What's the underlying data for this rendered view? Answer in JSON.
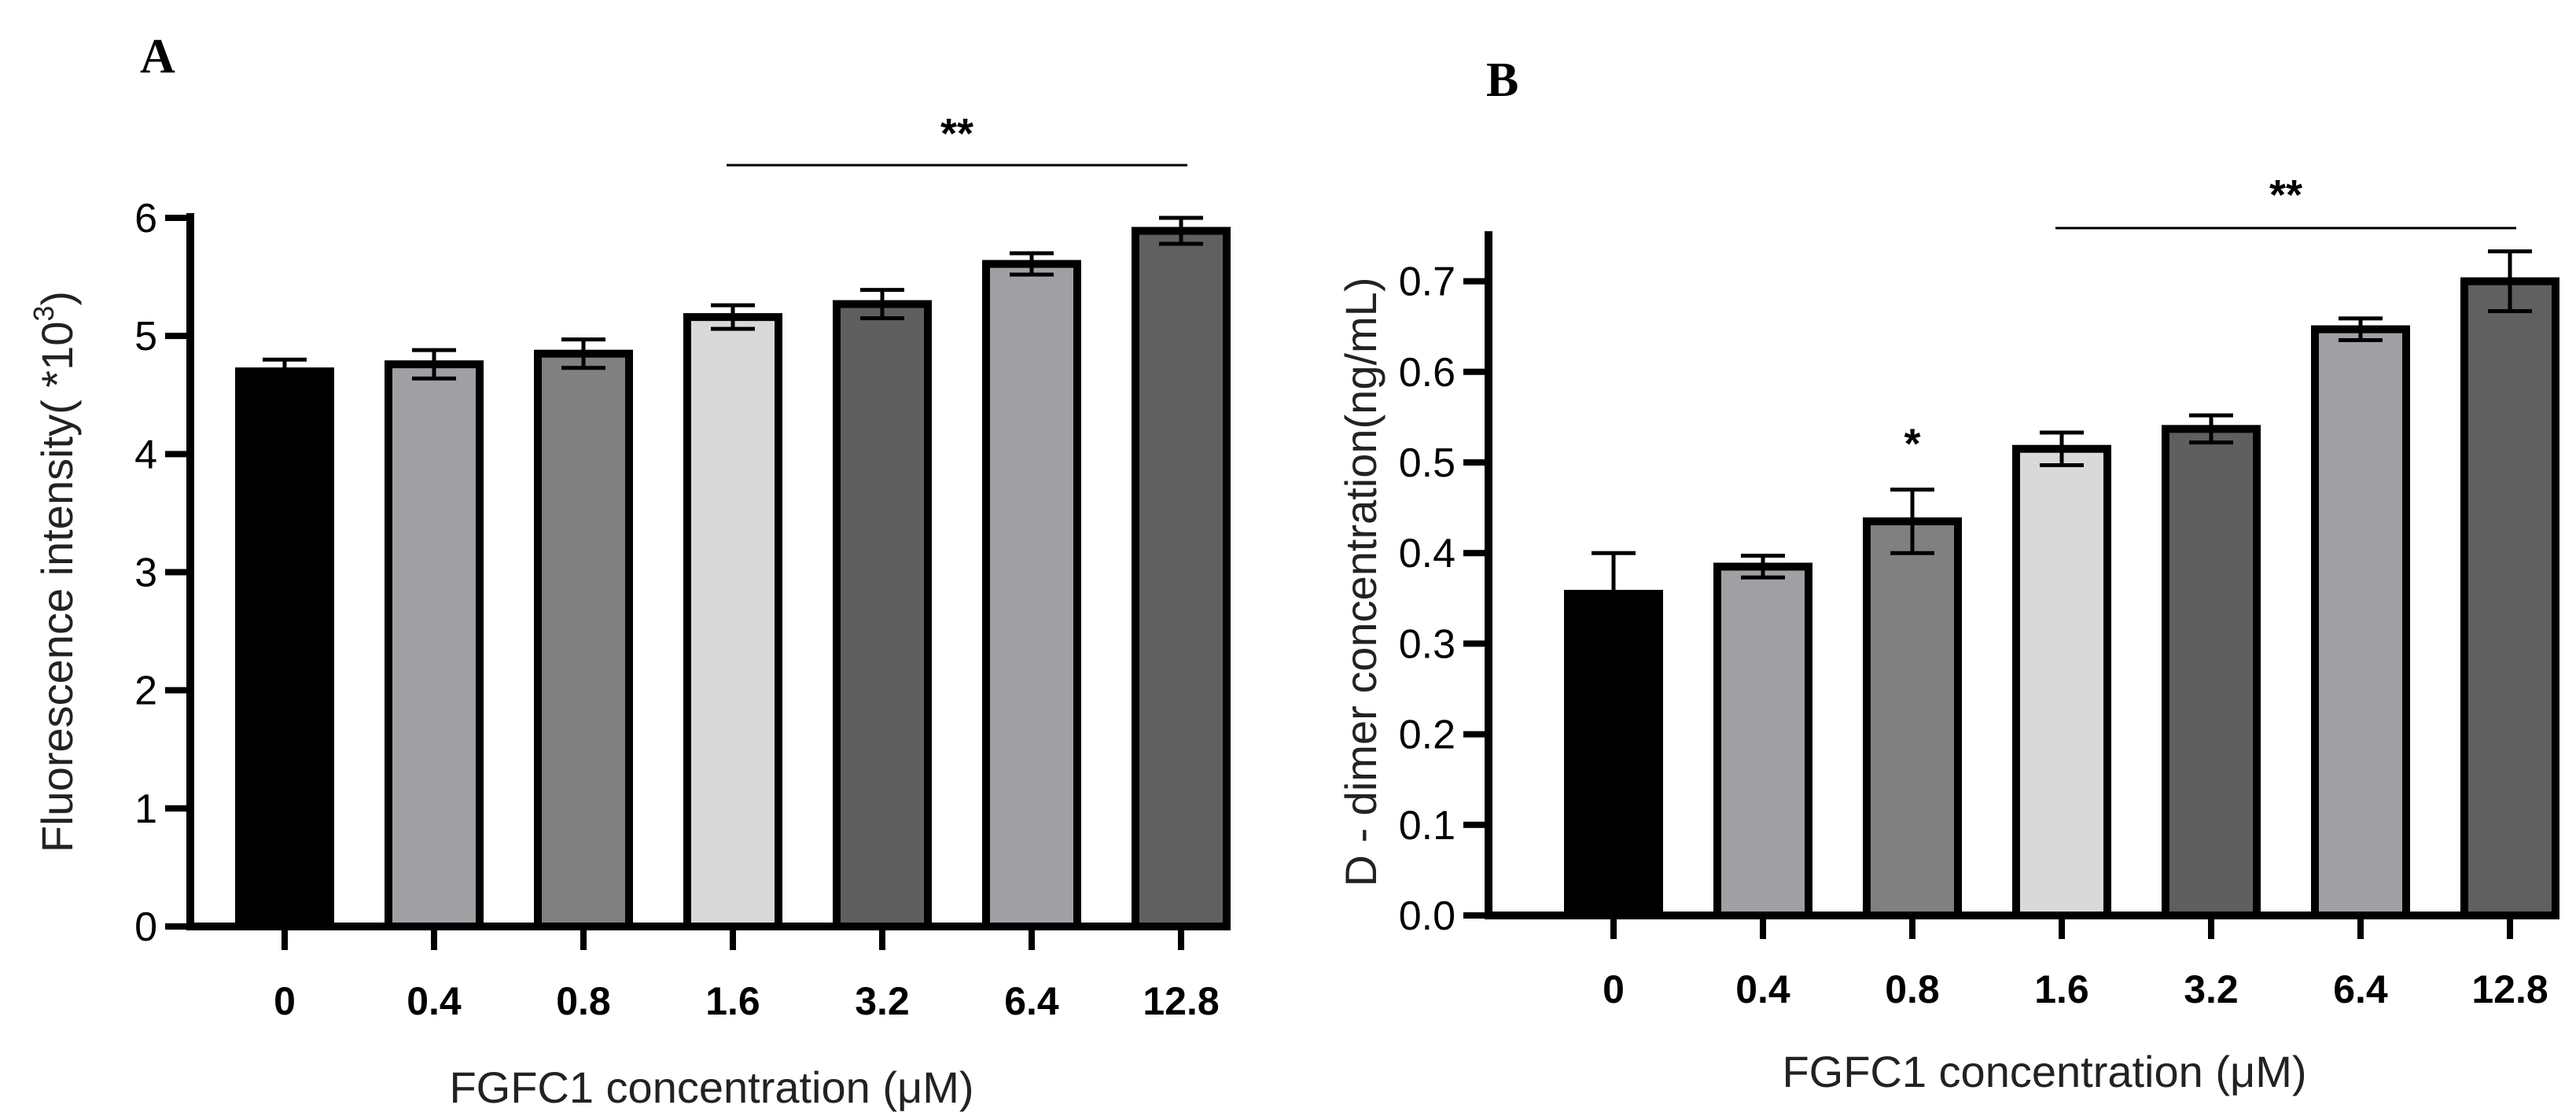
{
  "chart_data": [
    {
      "panel_label": "A",
      "type": "bar",
      "categories": [
        "0",
        "0.4",
        "0.8",
        "1.6",
        "3.2",
        "6.4",
        "12.8"
      ],
      "values": [
        4.7,
        4.76,
        4.85,
        5.16,
        5.27,
        5.61,
        5.89
      ],
      "errors": [
        0.1,
        0.12,
        0.12,
        0.1,
        0.12,
        0.09,
        0.11
      ],
      "bar_colors": [
        "#000000",
        "#a0a0a4",
        "#808080",
        "#d9d9d9",
        "#5f5f5f",
        "#a0a0a4",
        "#606060"
      ],
      "xlabel": "FGFC1 concentration (μM)",
      "ylabel_text": "Fluorescence intensity( *10",
      "ylabel_exp": "3",
      "ylabel_close": ")",
      "ylim": [
        0,
        6
      ],
      "yticks": [
        0,
        1,
        2,
        3,
        4,
        5,
        6
      ],
      "ytick_labels": [
        "0",
        "1",
        "2",
        "3",
        "4",
        "5",
        "6"
      ],
      "significance": [
        {
          "label": "**",
          "from_category": 3,
          "to_category": 6,
          "bracket": true
        }
      ]
    },
    {
      "panel_label": "B",
      "type": "bar",
      "categories": [
        "0",
        "0.4",
        "0.8",
        "1.6",
        "3.2",
        "6.4",
        "12.8"
      ],
      "values": [
        0.355,
        0.385,
        0.435,
        0.515,
        0.537,
        0.647,
        0.7
      ],
      "errors": [
        0.045,
        0.012,
        0.035,
        0.018,
        0.015,
        0.012,
        0.033
      ],
      "bar_colors": [
        "#000000",
        "#a0a0a4",
        "#808080",
        "#d9d9d9",
        "#5f5f5f",
        "#a0a0a4",
        "#606060"
      ],
      "xlabel": "FGFC1 concentration (μM)",
      "ylabel_text": "D - dimer concentration(ng/mL)",
      "ylim": [
        0,
        0.75
      ],
      "yticks": [
        0,
        0.1,
        0.2,
        0.3,
        0.4,
        0.5,
        0.6,
        0.7
      ],
      "ytick_labels": [
        "0.0",
        "0.1",
        "0.2",
        "0.3",
        "0.4",
        "0.5",
        "0.6",
        "0.7"
      ],
      "significance": [
        {
          "label": "*",
          "from_category": 2,
          "to_category": 2,
          "bracket": false
        },
        {
          "label": "**",
          "from_category": 3,
          "to_category": 6,
          "bracket": true
        }
      ]
    }
  ]
}
